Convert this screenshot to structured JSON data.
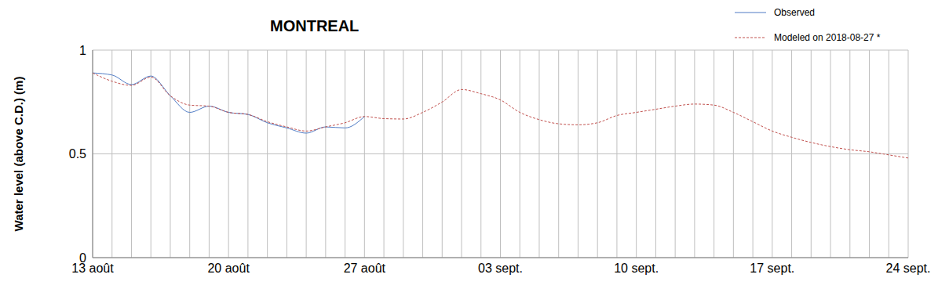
{
  "chart_data": {
    "type": "line",
    "title": "MONTREAL",
    "y_label": "Water level (above C.D.) (m)",
    "categories": [
      "13 août",
      null,
      null,
      null,
      null,
      null,
      null,
      "20 août",
      null,
      null,
      null,
      null,
      null,
      null,
      "27 août",
      null,
      null,
      null,
      null,
      null,
      null,
      "03 sept.",
      null,
      null,
      null,
      null,
      null,
      null,
      "10 sept.",
      null,
      null,
      null,
      null,
      null,
      null,
      "17 sept.",
      null,
      null,
      null,
      null,
      null,
      null,
      "24 sept."
    ],
    "series": [
      {
        "name": "Observed",
        "color": "#4f7bc4",
        "line_style": "solid",
        "values": [
          0.89,
          0.88,
          0.834,
          0.875,
          0.78,
          0.7,
          0.73,
          0.7,
          0.69,
          0.65,
          0.625,
          0.6,
          0.63,
          0.625,
          0.68,
          null,
          null,
          null,
          null,
          null,
          null,
          null,
          null,
          null,
          null,
          null,
          null,
          null,
          null,
          null,
          null,
          null,
          null,
          null,
          null,
          null,
          null,
          null,
          null,
          null,
          null,
          null,
          null
        ]
      },
      {
        "name": "Modeled on 2018-08-27 *",
        "color": "#c0504d",
        "line_style": "dashed",
        "values": [
          0.89,
          0.85,
          0.83,
          0.87,
          0.78,
          0.735,
          0.73,
          0.7,
          0.69,
          0.655,
          0.63,
          0.61,
          0.63,
          0.65,
          0.68,
          0.67,
          0.668,
          0.7,
          0.75,
          0.81,
          0.79,
          0.76,
          0.7,
          0.665,
          0.645,
          0.64,
          0.65,
          0.685,
          0.7,
          0.715,
          0.73,
          0.74,
          0.735,
          0.7,
          0.655,
          0.61,
          0.58,
          0.555,
          0.535,
          0.52,
          0.51,
          0.495,
          0.48
        ]
      }
    ],
    "ylim": [
      0,
      1
    ],
    "yticks": [
      0,
      0.5,
      1
    ],
    "grid": true,
    "legend": "top-right"
  }
}
